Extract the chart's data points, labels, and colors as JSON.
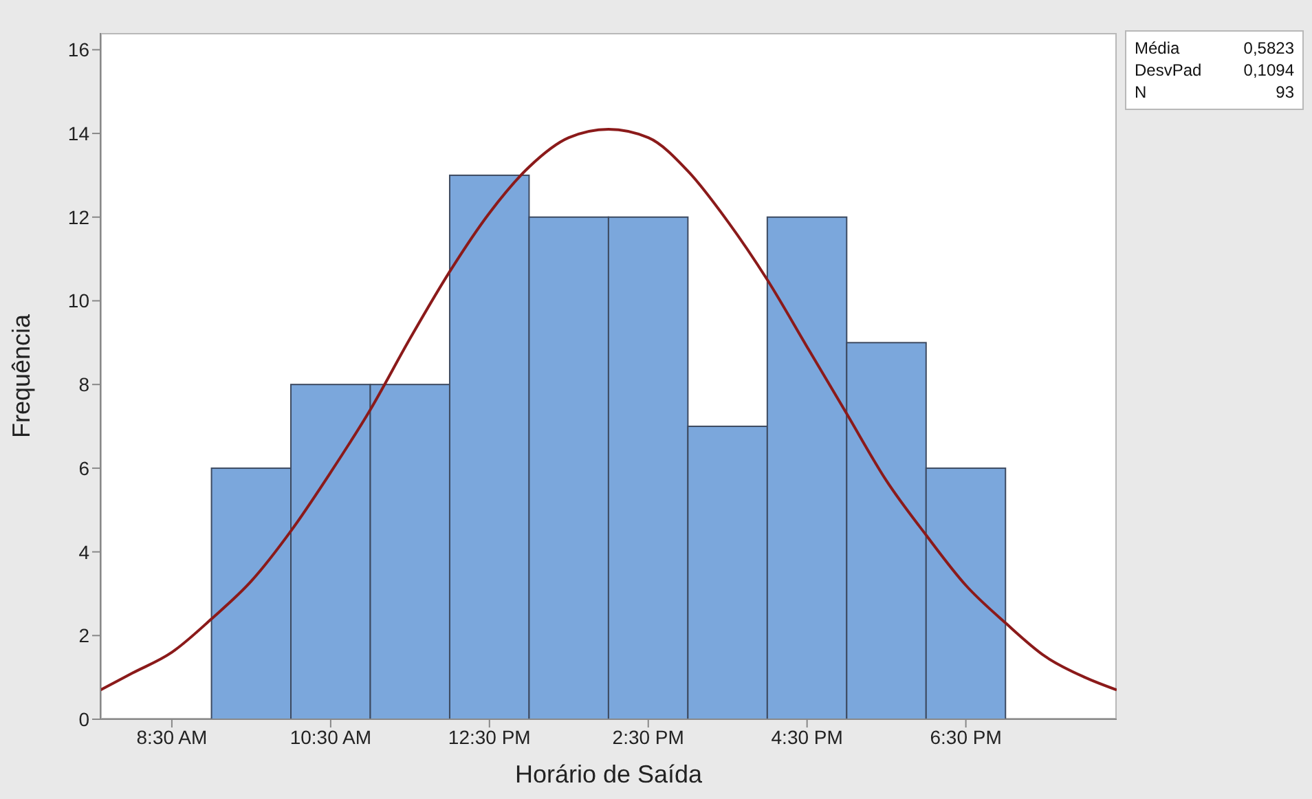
{
  "chart_data": {
    "type": "histogram",
    "xlabel": "Horário de Saída",
    "ylabel": "Frequência",
    "bins": [
      9,
      10,
      11,
      12,
      13,
      14,
      15,
      16,
      17,
      18,
      19
    ],
    "values": [
      6,
      8,
      8,
      13,
      12,
      12,
      7,
      12,
      9,
      6
    ],
    "color": "#7ba7dc",
    "series": [
      {
        "type": "line",
        "color": "#8b1a1a",
        "x": [
          7.6,
          8,
          8.5,
          9,
          9.5,
          10,
          10.5,
          11,
          11.5,
          12,
          12.5,
          13,
          13.5,
          14,
          14.5,
          15,
          15.5,
          16,
          16.5,
          17,
          17.5,
          18,
          18.5,
          19,
          19.5,
          20,
          20.4
        ],
        "values": [
          0.7,
          1.1,
          1.6,
          2.4,
          3.3,
          4.5,
          5.9,
          7.4,
          9.1,
          10.7,
          12.1,
          13.2,
          13.9,
          14.1,
          13.9,
          13.1,
          11.9,
          10.5,
          8.9,
          7.3,
          5.7,
          4.4,
          3.2,
          2.3,
          1.5,
          1.0,
          0.7
        ]
      }
    ],
    "xlim": [
      7.6,
      20.4
    ],
    "xticks": [
      {
        "value": 8.5,
        "label": "8:30 AM"
      },
      {
        "value": 10.5,
        "label": "10:30 AM"
      },
      {
        "value": 12.5,
        "label": "12:30 PM"
      },
      {
        "value": 14.5,
        "label": "2:30 PM"
      },
      {
        "value": 16.5,
        "label": "4:30 PM"
      },
      {
        "value": 18.5,
        "label": "6:30 PM"
      }
    ],
    "ylim": [
      0,
      16.4
    ],
    "yticks": [
      0,
      2,
      4,
      6,
      8,
      10,
      12,
      14,
      16
    ],
    "annotations": [
      "Média",
      "0,5823",
      "DesvPad",
      "0,1094",
      "N",
      "93"
    ],
    "marker": "none",
    "line_style": "solid",
    "grid": false
  }
}
